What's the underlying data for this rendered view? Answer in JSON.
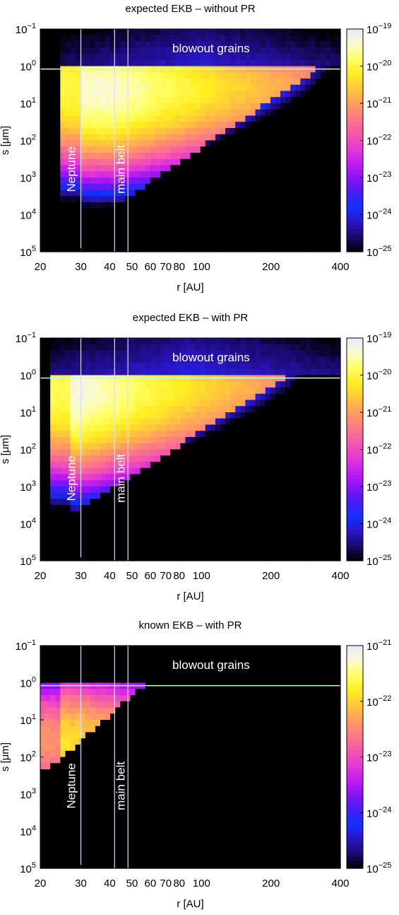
{
  "colors": {
    "colormap": [
      "#000000",
      "#1a0a6e",
      "#2a16c8",
      "#1230ff",
      "#4a1cf0",
      "#8a14f2",
      "#c41ef0",
      "#e63cd0",
      "#f55aa8",
      "#fb7a86",
      "#ff9e5e",
      "#ffc83a",
      "#ffee22",
      "#ffff66",
      "#fafad2",
      "#e8e8ff"
    ],
    "guide_lines": "#dcdcff",
    "blowout_line": "#c8ffd2",
    "annotation_text": "#ffffff"
  },
  "chart_data": [
    {
      "type": "heatmap",
      "title": "expected EKB – without PR",
      "xlabel": "r [AU]",
      "ylabel": "s [μm]",
      "x_scale": "log",
      "y_scale": "log",
      "xlim": [
        20,
        400
      ],
      "ylim": [
        0.1,
        100000
      ],
      "x_ticks": [
        20,
        30,
        40,
        50,
        60,
        70,
        80,
        100,
        200,
        400
      ],
      "x_tick_labels": [
        "20",
        "30",
        "40",
        "50",
        "60",
        "70",
        "80",
        "100",
        "200",
        "400"
      ],
      "y_ticks": [
        0.1,
        1,
        10,
        100,
        1000,
        10000,
        100000
      ],
      "y_tick_labels": [
        {
          "base": "10",
          "exp": "−1"
        },
        {
          "base": "10",
          "exp": "0"
        },
        {
          "base": "10",
          "exp": "1"
        },
        {
          "base": "10",
          "exp": "2"
        },
        {
          "base": "10",
          "exp": "3"
        },
        {
          "base": "10",
          "exp": "4"
        },
        {
          "base": "10",
          "exp": "5"
        }
      ],
      "colorbar_range": [
        -25,
        -19
      ],
      "colorbar_tick_labels": [
        {
          "base": "10",
          "exp": "−19"
        },
        {
          "base": "10",
          "exp": "−20"
        },
        {
          "base": "10",
          "exp": "−21"
        },
        {
          "base": "10",
          "exp": "−22"
        },
        {
          "base": "10",
          "exp": "−23"
        },
        {
          "base": "10",
          "exp": "−24"
        },
        {
          "base": "10",
          "exp": "−25"
        }
      ],
      "vertical_lines_r": [
        30,
        42,
        48
      ],
      "blowout_size": 1.2,
      "annotations": [
        {
          "text": "blowout grains",
          "r": 110,
          "s": 0.35
        },
        {
          "text": "Neptune",
          "r": 27.5,
          "s": 600
        },
        {
          "text": "main belt",
          "r": 45,
          "s": 600
        }
      ],
      "model": {
        "inner_r": 25,
        "peak_r": 42,
        "peak_s": 4,
        "peak_log": -19.4,
        "fall_small": 0.9,
        "fall_large": 0.55,
        "r_spread": 2.0,
        "cutoff_base": 6000,
        "cutoff_slope": 4.2,
        "halo_log": -24.6,
        "noise_small_log": -25.5
      }
    },
    {
      "type": "heatmap",
      "title": "expected EKB – with PR",
      "xlabel": "r [AU]",
      "ylabel": "s [μm]",
      "x_scale": "log",
      "y_scale": "log",
      "xlim": [
        20,
        400
      ],
      "ylim": [
        0.1,
        100000
      ],
      "x_ticks": [
        20,
        30,
        40,
        50,
        60,
        70,
        80,
        100,
        200,
        400
      ],
      "x_tick_labels": [
        "20",
        "30",
        "40",
        "50",
        "60",
        "70",
        "80",
        "100",
        "200",
        "400"
      ],
      "y_ticks": [
        0.1,
        1,
        10,
        100,
        1000,
        10000,
        100000
      ],
      "y_tick_labels": [
        {
          "base": "10",
          "exp": "−1"
        },
        {
          "base": "10",
          "exp": "0"
        },
        {
          "base": "10",
          "exp": "1"
        },
        {
          "base": "10",
          "exp": "2"
        },
        {
          "base": "10",
          "exp": "3"
        },
        {
          "base": "10",
          "exp": "4"
        },
        {
          "base": "10",
          "exp": "5"
        }
      ],
      "colorbar_range": [
        -25,
        -19
      ],
      "colorbar_tick_labels": [
        {
          "base": "10",
          "exp": "−19"
        },
        {
          "base": "10",
          "exp": "−20"
        },
        {
          "base": "10",
          "exp": "−21"
        },
        {
          "base": "10",
          "exp": "−22"
        },
        {
          "base": "10",
          "exp": "−23"
        },
        {
          "base": "10",
          "exp": "−24"
        },
        {
          "base": "10",
          "exp": "−25"
        }
      ],
      "vertical_lines_r": [
        30,
        42,
        48
      ],
      "blowout_size": 1.2,
      "annotations": [
        {
          "text": "blowout grains",
          "r": 110,
          "s": 0.35
        },
        {
          "text": "Neptune",
          "r": 27.5,
          "s": 600
        },
        {
          "text": "main belt",
          "r": 45,
          "s": 600
        }
      ],
      "model": {
        "inner_r": 22,
        "peak_r": 30,
        "peak_s": 2.5,
        "peak_log": -19.3,
        "fall_small": 0.9,
        "fall_large": 0.5,
        "r_spread": 2.1,
        "cutoff_base": 4000,
        "cutoff_slope": 4.0,
        "halo_log": -24.5,
        "noise_small_log": -25.5
      }
    },
    {
      "type": "heatmap",
      "title": "known EKB – with PR",
      "xlabel": "r [AU]",
      "ylabel": "s [μm]",
      "x_scale": "log",
      "y_scale": "log",
      "xlim": [
        20,
        400
      ],
      "ylim": [
        0.1,
        100000
      ],
      "x_ticks": [
        20,
        30,
        40,
        50,
        60,
        70,
        80,
        100,
        200,
        400
      ],
      "x_tick_labels": [
        "20",
        "30",
        "40",
        "50",
        "60",
        "70",
        "80",
        "100",
        "200",
        "400"
      ],
      "y_ticks": [
        0.1,
        1,
        10,
        100,
        1000,
        10000,
        100000
      ],
      "y_tick_labels": [
        {
          "base": "10",
          "exp": "−1"
        },
        {
          "base": "10",
          "exp": "0"
        },
        {
          "base": "10",
          "exp": "1"
        },
        {
          "base": "10",
          "exp": "2"
        },
        {
          "base": "10",
          "exp": "3"
        },
        {
          "base": "10",
          "exp": "4"
        },
        {
          "base": "10",
          "exp": "5"
        }
      ],
      "colorbar_range": [
        -25,
        -21
      ],
      "colorbar_tick_labels": [
        {
          "base": "10",
          "exp": "−21"
        },
        {
          "base": "10",
          "exp": "−22"
        },
        {
          "base": "10",
          "exp": "−23"
        },
        {
          "base": "10",
          "exp": "−24"
        },
        {
          "base": "10",
          "exp": "−25"
        }
      ],
      "vertical_lines_r": [
        30,
        42,
        48
      ],
      "blowout_size": 1.2,
      "annotations": [
        {
          "text": "blowout grains",
          "r": 110,
          "s": 0.35
        },
        {
          "text": "Neptune",
          "r": 27.5,
          "s": 600
        },
        {
          "text": "main belt",
          "r": 45,
          "s": 600
        }
      ],
      "model": {
        "inner_r": 20,
        "peak_r": 22,
        "peak_s": 40,
        "peak_log": -21.8,
        "fall_small": 0.55,
        "fall_large": 0.7,
        "r_spread": 1.4,
        "cutoff_base": 200,
        "cutoff_slope": 5.5,
        "halo_log": -25.2,
        "noise_small_log": -26
      }
    }
  ]
}
